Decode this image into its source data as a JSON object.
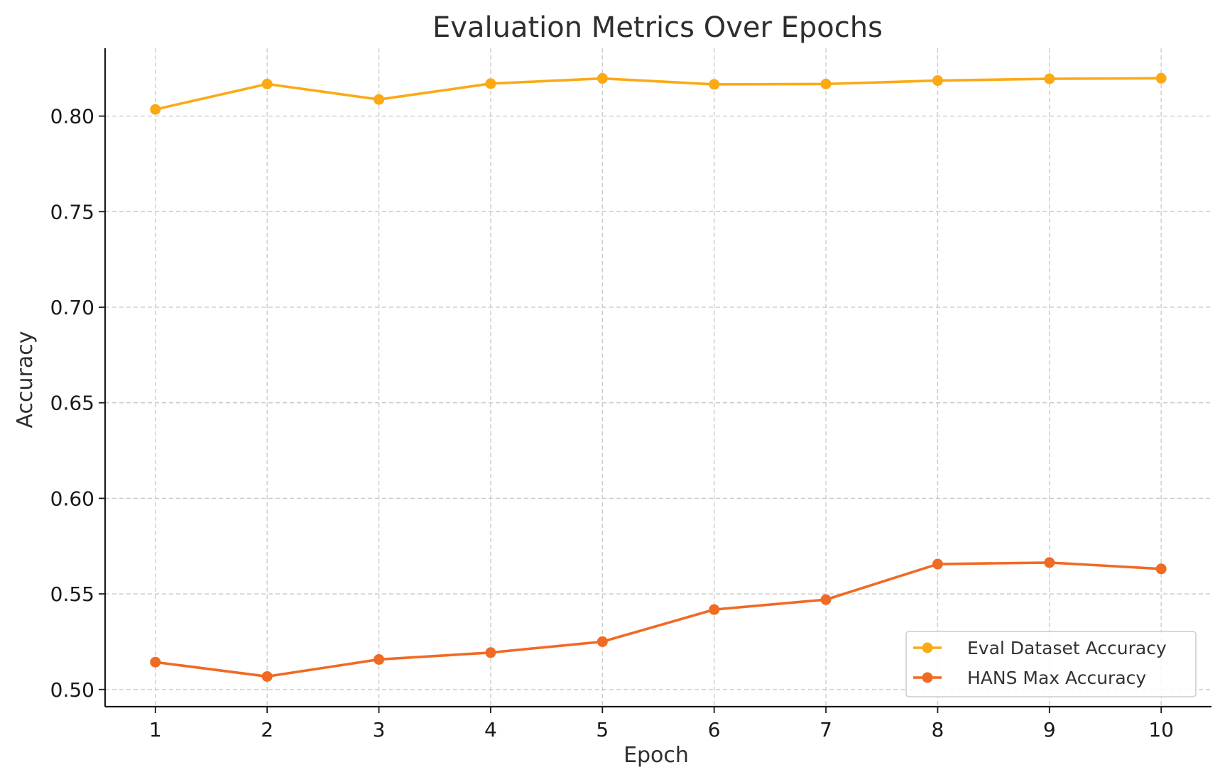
{
  "chart_data": {
    "type": "line",
    "title": "Evaluation Metrics Over Epochs",
    "xlabel": "Epoch",
    "ylabel": "Accuracy",
    "x": [
      1,
      2,
      3,
      4,
      5,
      6,
      7,
      8,
      9,
      10
    ],
    "x_tick_labels": [
      "1",
      "2",
      "3",
      "4",
      "5",
      "6",
      "7",
      "8",
      "9",
      "10"
    ],
    "y_ticks": [
      0.5,
      0.55,
      0.6,
      0.65,
      0.7,
      0.75,
      0.8
    ],
    "y_tick_labels": [
      "0.50",
      "0.55",
      "0.60",
      "0.65",
      "0.70",
      "0.75",
      "0.80"
    ],
    "xlim": [
      0.55,
      10.45
    ],
    "ylim": [
      0.491,
      0.8355
    ],
    "grid": true,
    "grid_style": "dashed",
    "legend_position": "lower-right",
    "series": [
      {
        "name": "Eval Dataset Accuracy",
        "color": "#FBAA14",
        "marker": "circle",
        "values": [
          0.8035,
          0.8168,
          0.8087,
          0.817,
          0.8197,
          0.8166,
          0.8168,
          0.8186,
          0.8195,
          0.8198
        ]
      },
      {
        "name": "HANS Max Accuracy",
        "color": "#F06A23",
        "marker": "circle",
        "values": [
          0.5143,
          0.5068,
          0.5157,
          0.5193,
          0.525,
          0.5418,
          0.547,
          0.5656,
          0.5664,
          0.5631
        ]
      }
    ]
  }
}
